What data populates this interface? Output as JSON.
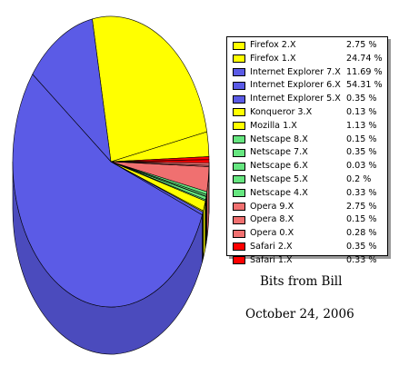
{
  "chart_data": {
    "type": "pie",
    "style": "3d-tilted",
    "legend_position": "right",
    "slices": [
      {
        "label": "Firefox 2.X",
        "value_text": "2.75 %",
        "value": 2.75,
        "color": "#ffff00"
      },
      {
        "label": "Firefox 1.X",
        "value_text": "24.74 %",
        "value": 24.74,
        "color": "#ffff00"
      },
      {
        "label": "Internet Explorer 7.X",
        "value_text": "11.69 %",
        "value": 11.69,
        "color": "#5b5be6"
      },
      {
        "label": "Internet Explorer 6.X",
        "value_text": "54.31 %",
        "value": 54.31,
        "color": "#5b5be6"
      },
      {
        "label": "Internet Explorer 5.X",
        "value_text": "0.35 %",
        "value": 0.35,
        "color": "#5b5be6"
      },
      {
        "label": "Konqueror 3.X",
        "value_text": "0.13 %",
        "value": 0.13,
        "color": "#ffff00"
      },
      {
        "label": "Mozilla 1.X",
        "value_text": "1.13 %",
        "value": 1.13,
        "color": "#ffff00"
      },
      {
        "label": "Netscape 8.X",
        "value_text": "0.15 %",
        "value": 0.15,
        "color": "#66e680"
      },
      {
        "label": "Netscape 7.X",
        "value_text": "0.35 %",
        "value": 0.35,
        "color": "#66e680"
      },
      {
        "label": "Netscape 6.X",
        "value_text": "0.03 %",
        "value": 0.03,
        "color": "#66e680"
      },
      {
        "label": "Netscape 5.X",
        "value_text": "0.2 %",
        "value": 0.2,
        "color": "#66e680"
      },
      {
        "label": "Netscape 4.X",
        "value_text": "0.33 %",
        "value": 0.33,
        "color": "#66e680"
      },
      {
        "label": "Opera 9.X",
        "value_text": "2.75 %",
        "value": 2.75,
        "color": "#f07070"
      },
      {
        "label": "Opera 8.X",
        "value_text": "0.15 %",
        "value": 0.15,
        "color": "#f07070"
      },
      {
        "label": "Opera 0.X",
        "value_text": "0.28 %",
        "value": 0.28,
        "color": "#f07070"
      },
      {
        "label": "Safari 2.X",
        "value_text": "0.35 %",
        "value": 0.35,
        "color": "#ff0000"
      },
      {
        "label": "Safari 1.X",
        "value_text": "0.33 %",
        "value": 0.33,
        "color": "#ff0000"
      }
    ]
  },
  "captions": {
    "title": "Bits from Bill",
    "date": "October 24, 2006"
  }
}
